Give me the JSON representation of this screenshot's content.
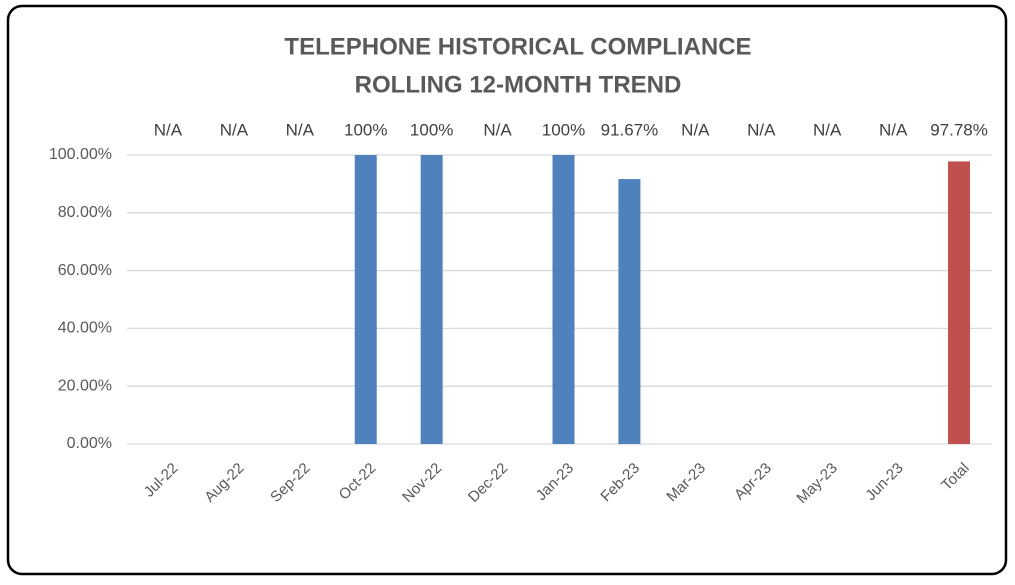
{
  "chart_data": {
    "type": "bar",
    "title": "TELEPHONE HISTORICAL COMPLIANCE",
    "subtitle": "ROLLING 12-MONTH TREND",
    "categories": [
      "Jul-22",
      "Aug-22",
      "Sep-22",
      "Oct-22",
      "Nov-22",
      "Dec-22",
      "Jan-23",
      "Feb-23",
      "Mar-23",
      "Apr-23",
      "May-23",
      "Jun-23",
      "Total"
    ],
    "values": [
      null,
      null,
      null,
      100,
      100,
      null,
      100,
      91.67,
      null,
      null,
      null,
      null,
      97.78
    ],
    "value_labels": [
      "N/A",
      "N/A",
      "N/A",
      "100%",
      "100%",
      "N/A",
      "100%",
      "91.67%",
      "N/A",
      "N/A",
      "N/A",
      "N/A",
      "97.78%"
    ],
    "colors": [
      "#4f81bd",
      "#4f81bd",
      "#4f81bd",
      "#4f81bd",
      "#4f81bd",
      "#4f81bd",
      "#4f81bd",
      "#4f81bd",
      "#4f81bd",
      "#4f81bd",
      "#4f81bd",
      "#4f81bd",
      "#c0504d"
    ],
    "ylim": [
      0,
      100
    ],
    "yticks": [
      {
        "value": 0,
        "label": "0.00%"
      },
      {
        "value": 20,
        "label": "20.00%"
      },
      {
        "value": 40,
        "label": "40.00%"
      },
      {
        "value": 60,
        "label": "60.00%"
      },
      {
        "value": 80,
        "label": "80.00%"
      },
      {
        "value": 100,
        "label": "100.00%"
      }
    ],
    "grid": true
  }
}
